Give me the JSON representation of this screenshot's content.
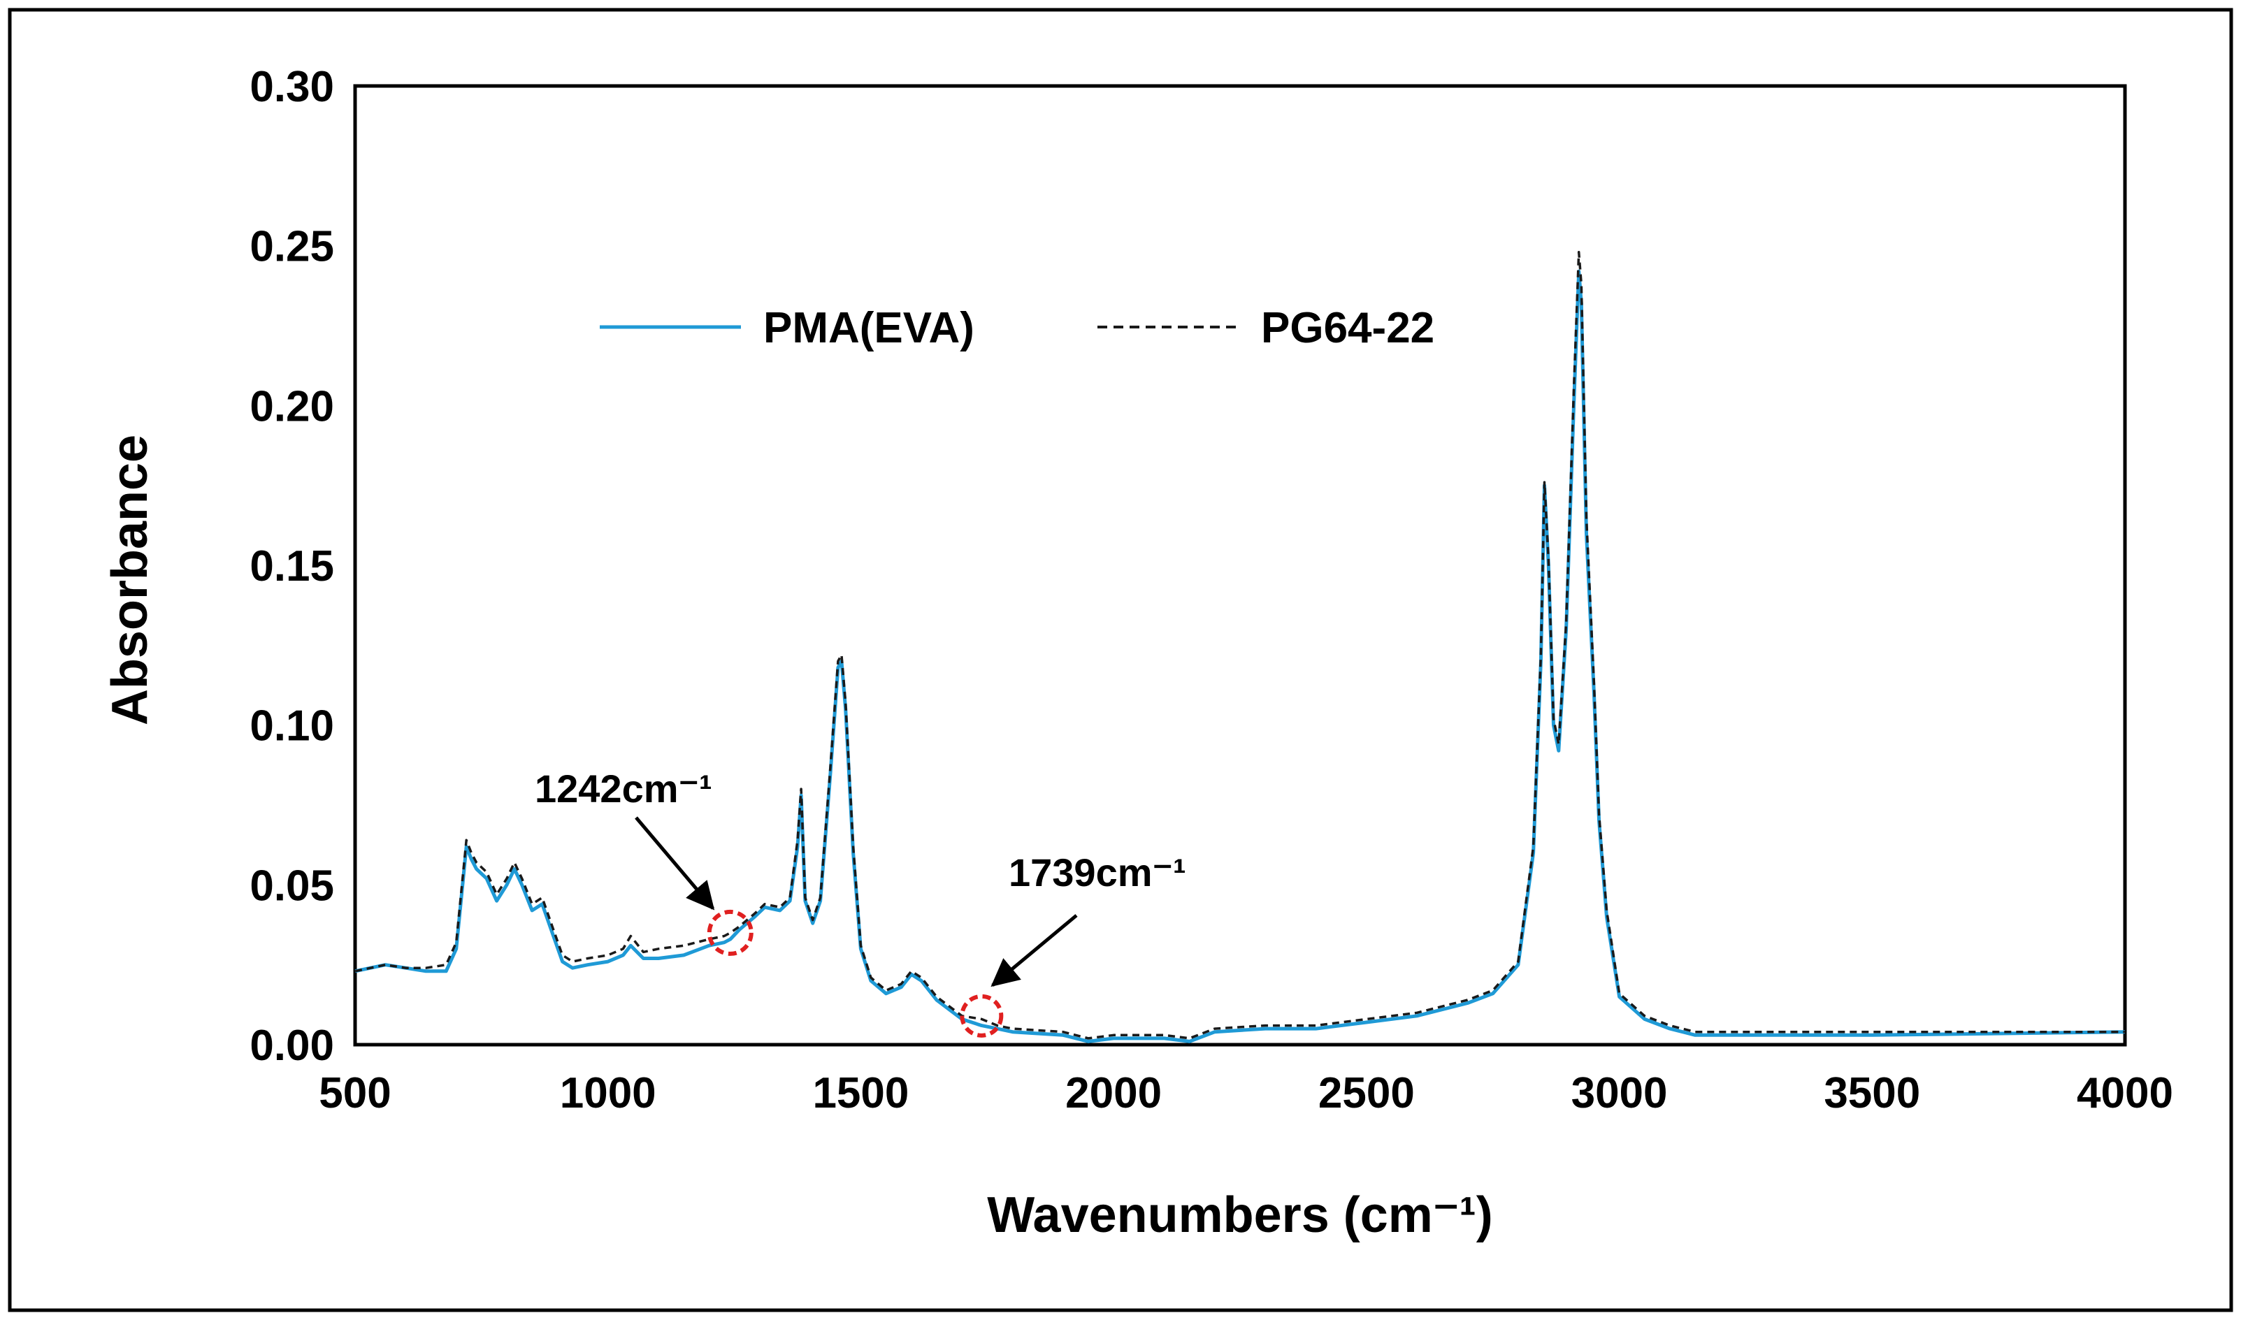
{
  "chart_data": {
    "type": "line",
    "title": "",
    "xlabel": "Wavenumbers (cm⁻¹)",
    "ylabel": "Absorbance",
    "xlim": [
      500,
      4000
    ],
    "ylim": [
      0,
      0.3
    ],
    "x_ticks": [
      "500",
      "1000",
      "1500",
      "2000",
      "2500",
      "3000",
      "3500",
      "4000"
    ],
    "y_ticks": [
      "0.00",
      "0.05",
      "0.10",
      "0.15",
      "0.20",
      "0.25",
      "0.30"
    ],
    "grid": false,
    "legend_position": "top-left",
    "series": [
      {
        "name": "PMA(EVA)",
        "style": "solid",
        "color": "#1f9ad6",
        "x": [
          500,
          560,
          600,
          640,
          680,
          700,
          720,
          730,
          740,
          760,
          780,
          800,
          815,
          830,
          850,
          870,
          890,
          910,
          930,
          960,
          1000,
          1030,
          1045,
          1070,
          1100,
          1150,
          1200,
          1230,
          1242,
          1260,
          1290,
          1310,
          1340,
          1360,
          1375,
          1382,
          1390,
          1405,
          1420,
          1440,
          1455,
          1462,
          1470,
          1485,
          1500,
          1520,
          1550,
          1580,
          1600,
          1620,
          1650,
          1700,
          1739,
          1770,
          1800,
          1900,
          1950,
          2000,
          2100,
          2150,
          2200,
          2300,
          2400,
          2500,
          2600,
          2700,
          2750,
          2800,
          2830,
          2845,
          2852,
          2860,
          2870,
          2880,
          2895,
          2910,
          2920,
          2925,
          2935,
          2950,
          2960,
          2975,
          3000,
          3050,
          3100,
          3150,
          3500,
          4000
        ],
        "y": [
          0.023,
          0.025,
          0.024,
          0.023,
          0.023,
          0.03,
          0.062,
          0.058,
          0.055,
          0.052,
          0.045,
          0.05,
          0.055,
          0.05,
          0.042,
          0.044,
          0.035,
          0.026,
          0.024,
          0.025,
          0.026,
          0.028,
          0.031,
          0.027,
          0.027,
          0.028,
          0.031,
          0.032,
          0.033,
          0.036,
          0.04,
          0.043,
          0.042,
          0.045,
          0.062,
          0.078,
          0.045,
          0.038,
          0.045,
          0.085,
          0.118,
          0.12,
          0.105,
          0.06,
          0.03,
          0.02,
          0.016,
          0.018,
          0.022,
          0.02,
          0.014,
          0.008,
          0.006,
          0.005,
          0.004,
          0.003,
          0.001,
          0.002,
          0.002,
          0.001,
          0.004,
          0.005,
          0.005,
          0.007,
          0.009,
          0.013,
          0.016,
          0.025,
          0.06,
          0.12,
          0.175,
          0.15,
          0.1,
          0.092,
          0.13,
          0.2,
          0.242,
          0.232,
          0.16,
          0.11,
          0.07,
          0.04,
          0.015,
          0.008,
          0.005,
          0.003,
          0.003,
          0.004
        ]
      },
      {
        "name": "PG64-22",
        "style": "dashed",
        "color": "#1a1a1a",
        "x": [
          500,
          560,
          600,
          640,
          680,
          700,
          720,
          730,
          740,
          760,
          780,
          800,
          815,
          830,
          850,
          870,
          890,
          910,
          930,
          960,
          1000,
          1030,
          1045,
          1070,
          1100,
          1150,
          1200,
          1230,
          1242,
          1260,
          1290,
          1310,
          1340,
          1360,
          1375,
          1382,
          1390,
          1405,
          1420,
          1440,
          1455,
          1462,
          1470,
          1485,
          1500,
          1520,
          1550,
          1580,
          1600,
          1620,
          1650,
          1700,
          1739,
          1770,
          1800,
          1900,
          1950,
          2000,
          2100,
          2150,
          2200,
          2300,
          2400,
          2500,
          2600,
          2700,
          2750,
          2800,
          2830,
          2845,
          2852,
          2860,
          2870,
          2880,
          2895,
          2910,
          2920,
          2925,
          2935,
          2950,
          2960,
          2975,
          3000,
          3050,
          3100,
          3150,
          3500,
          4000
        ],
        "y": [
          0.023,
          0.025,
          0.024,
          0.024,
          0.025,
          0.032,
          0.064,
          0.06,
          0.057,
          0.054,
          0.047,
          0.052,
          0.057,
          0.052,
          0.044,
          0.046,
          0.037,
          0.028,
          0.026,
          0.027,
          0.028,
          0.03,
          0.034,
          0.029,
          0.03,
          0.031,
          0.033,
          0.034,
          0.035,
          0.037,
          0.041,
          0.044,
          0.043,
          0.046,
          0.064,
          0.08,
          0.046,
          0.039,
          0.046,
          0.087,
          0.12,
          0.122,
          0.107,
          0.062,
          0.031,
          0.021,
          0.017,
          0.019,
          0.023,
          0.021,
          0.015,
          0.009,
          0.008,
          0.006,
          0.005,
          0.004,
          0.002,
          0.003,
          0.003,
          0.002,
          0.005,
          0.006,
          0.006,
          0.008,
          0.01,
          0.014,
          0.017,
          0.026,
          0.062,
          0.122,
          0.176,
          0.152,
          0.102,
          0.094,
          0.132,
          0.205,
          0.248,
          0.238,
          0.165,
          0.113,
          0.072,
          0.042,
          0.016,
          0.009,
          0.006,
          0.004,
          0.004,
          0.004
        ]
      }
    ],
    "annotations": [
      {
        "label": "1242cm⁻¹",
        "x": 1242,
        "y": 0.035
      },
      {
        "label": "1739cm⁻¹",
        "x": 1739,
        "y": 0.009
      }
    ]
  }
}
